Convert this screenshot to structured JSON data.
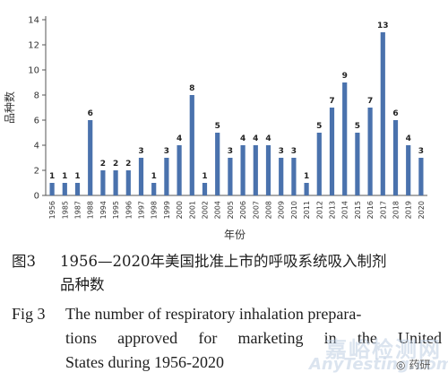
{
  "chart_data": {
    "type": "bar",
    "ylabel": "品种数",
    "xlabel": "年份",
    "ylim": [
      0,
      14
    ],
    "yticks": [
      0,
      2,
      4,
      6,
      8,
      10,
      12,
      14
    ],
    "categories": [
      "1956",
      "1985",
      "1987",
      "1988",
      "1994",
      "1995",
      "1996",
      "1997",
      "1998",
      "1999",
      "2000",
      "2001",
      "2002",
      "2004",
      "2005",
      "2006",
      "2007",
      "2008",
      "2009",
      "2010",
      "2011",
      "2012",
      "2013",
      "2014",
      "2015",
      "2016",
      "2017",
      "2018",
      "2019",
      "2020"
    ],
    "values": [
      1,
      1,
      1,
      6,
      2,
      2,
      2,
      3,
      1,
      3,
      4,
      8,
      1,
      5,
      3,
      4,
      4,
      4,
      3,
      3,
      1,
      5,
      7,
      9,
      5,
      7,
      13,
      6,
      4,
      3
    ],
    "bar_color": "#4a72ad",
    "grid": false
  },
  "caption_zh": {
    "label": "图3",
    "line1": "1956—2020年美国批准上市的呼吸系统吸入制剂",
    "line2": "品种数"
  },
  "caption_en": {
    "label": "Fig 3",
    "line1": "The number of respiratory inhalation prepara-",
    "line2": "tions approved for marketing in the United",
    "line3": "States during 1956-2020"
  },
  "watermark": {
    "zh": "嘉峪检测网",
    "en": "AnyTesting.com"
  },
  "badge": {
    "icon": "wechat-icon",
    "text": "药研"
  }
}
